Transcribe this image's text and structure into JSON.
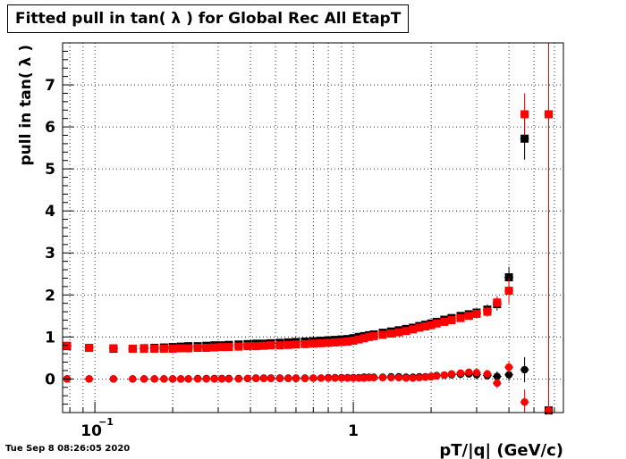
{
  "page": {
    "datestamp": "Tue Sep  8 08:26:05 2020"
  },
  "chart_data": {
    "type": "scatter",
    "title": "Fitted pull in tan( λ ) for Global Rec All EtapT",
    "xlabel": "pT/|q| (GeV/c)",
    "ylabel": "pull in tan( λ )",
    "xscale": "log",
    "xlim": [
      0.075,
      6.5
    ],
    "ylim": [
      -0.8,
      8.0
    ],
    "grid": true,
    "x_ticklabels": [
      {
        "value": 0.1,
        "label": "10",
        "exponent": "−1"
      },
      {
        "value": 1,
        "label": "1",
        "exponent": ""
      }
    ],
    "y_ticklabels": [
      "0",
      "1",
      "2",
      "3",
      "4",
      "5",
      "6",
      "7"
    ],
    "colors": {
      "black": "#000000",
      "red": "#ff0000"
    },
    "series": [
      {
        "color": "#000000",
        "marker": "square",
        "x": [
          0.078,
          0.095,
          0.118,
          0.14,
          0.155,
          0.17,
          0.185,
          0.2,
          0.215,
          0.23,
          0.25,
          0.27,
          0.29,
          0.31,
          0.33,
          0.36,
          0.39,
          0.42,
          0.45,
          0.48,
          0.52,
          0.56,
          0.6,
          0.65,
          0.7,
          0.75,
          0.8,
          0.85,
          0.9,
          0.95,
          1.0,
          1.05,
          1.1,
          1.15,
          1.2,
          1.3,
          1.4,
          1.5,
          1.6,
          1.7,
          1.8,
          1.9,
          2.0,
          2.1,
          2.25,
          2.4,
          2.6,
          2.8,
          3.0,
          3.3,
          3.6,
          4.0,
          4.6,
          5.7
        ],
        "y": [
          0.78,
          0.74,
          0.72,
          0.72,
          0.73,
          0.74,
          0.75,
          0.76,
          0.77,
          0.78,
          0.78,
          0.79,
          0.8,
          0.8,
          0.81,
          0.82,
          0.83,
          0.84,
          0.84,
          0.85,
          0.86,
          0.87,
          0.88,
          0.89,
          0.9,
          0.91,
          0.92,
          0.93,
          0.94,
          0.95,
          0.97,
          1.0,
          1.02,
          1.04,
          1.06,
          1.1,
          1.13,
          1.16,
          1.19,
          1.22,
          1.26,
          1.29,
          1.32,
          1.36,
          1.41,
          1.45,
          1.5,
          1.54,
          1.58,
          1.65,
          1.78,
          2.42,
          5.72,
          -0.75
        ],
        "yerr": [
          0.05,
          0.03,
          0.03,
          0.03,
          0.02,
          0.02,
          0.02,
          0.02,
          0.02,
          0.02,
          0.02,
          0.02,
          0.02,
          0.02,
          0.02,
          0.02,
          0.02,
          0.02,
          0.02,
          0.02,
          0.02,
          0.02,
          0.02,
          0.02,
          0.02,
          0.02,
          0.02,
          0.02,
          0.02,
          0.02,
          0.03,
          0.03,
          0.03,
          0.03,
          0.03,
          0.03,
          0.04,
          0.04,
          0.04,
          0.05,
          0.05,
          0.05,
          0.05,
          0.06,
          0.06,
          0.07,
          0.08,
          0.09,
          0.1,
          0.12,
          0.15,
          0.25,
          0.5,
          0.8
        ]
      },
      {
        "color": "#ff0000",
        "marker": "square",
        "x": [
          0.078,
          0.095,
          0.118,
          0.14,
          0.155,
          0.17,
          0.185,
          0.2,
          0.215,
          0.23,
          0.25,
          0.27,
          0.29,
          0.31,
          0.33,
          0.36,
          0.39,
          0.42,
          0.45,
          0.48,
          0.52,
          0.56,
          0.6,
          0.65,
          0.7,
          0.75,
          0.8,
          0.85,
          0.9,
          0.95,
          1.0,
          1.05,
          1.1,
          1.15,
          1.2,
          1.3,
          1.4,
          1.5,
          1.6,
          1.7,
          1.8,
          1.9,
          2.0,
          2.1,
          2.25,
          2.4,
          2.6,
          2.8,
          3.0,
          3.3,
          3.6,
          4.0,
          4.6,
          5.7
        ],
        "y": [
          0.79,
          0.74,
          0.73,
          0.72,
          0.72,
          0.72,
          0.72,
          0.72,
          0.73,
          0.73,
          0.74,
          0.74,
          0.75,
          0.76,
          0.76,
          0.77,
          0.78,
          0.78,
          0.79,
          0.8,
          0.8,
          0.81,
          0.82,
          0.83,
          0.84,
          0.85,
          0.86,
          0.87,
          0.88,
          0.89,
          0.91,
          0.94,
          0.97,
          1.0,
          1.02,
          1.05,
          1.08,
          1.11,
          1.14,
          1.18,
          1.22,
          1.25,
          1.28,
          1.32,
          1.36,
          1.4,
          1.45,
          1.5,
          1.55,
          1.6,
          1.82,
          2.1,
          6.3,
          6.3
        ],
        "yerr": [
          0.05,
          0.03,
          0.03,
          0.03,
          0.02,
          0.02,
          0.02,
          0.02,
          0.02,
          0.02,
          0.02,
          0.02,
          0.02,
          0.02,
          0.02,
          0.02,
          0.02,
          0.02,
          0.02,
          0.02,
          0.02,
          0.02,
          0.02,
          0.02,
          0.02,
          0.02,
          0.02,
          0.02,
          0.02,
          0.02,
          0.03,
          0.03,
          0.03,
          0.03,
          0.03,
          0.03,
          0.04,
          0.04,
          0.04,
          0.05,
          0.05,
          0.05,
          0.05,
          0.06,
          0.06,
          0.07,
          0.08,
          0.09,
          0.1,
          0.12,
          0.15,
          0.3,
          0.5,
          7.0
        ]
      },
      {
        "color": "#000000",
        "marker": "circle",
        "x": [
          0.078,
          0.095,
          0.118,
          0.14,
          0.155,
          0.17,
          0.185,
          0.2,
          0.215,
          0.23,
          0.25,
          0.27,
          0.29,
          0.31,
          0.33,
          0.36,
          0.39,
          0.42,
          0.45,
          0.48,
          0.52,
          0.56,
          0.6,
          0.65,
          0.7,
          0.75,
          0.8,
          0.85,
          0.9,
          0.95,
          1.0,
          1.05,
          1.1,
          1.15,
          1.2,
          1.3,
          1.4,
          1.5,
          1.6,
          1.7,
          1.8,
          1.9,
          2.0,
          2.1,
          2.25,
          2.4,
          2.6,
          2.8,
          3.0,
          3.3,
          3.6,
          4.0,
          4.6,
          5.7
        ],
        "y": [
          0.0,
          0.0,
          0.0,
          0.0,
          0.0,
          0.0,
          0.0,
          0.0,
          0.0,
          0.0,
          0.01,
          0.01,
          0.01,
          0.01,
          0.01,
          0.01,
          0.01,
          0.02,
          0.02,
          0.02,
          0.02,
          0.02,
          0.02,
          0.02,
          0.02,
          0.02,
          0.03,
          0.03,
          0.03,
          0.03,
          0.03,
          0.03,
          0.04,
          0.04,
          0.04,
          0.04,
          0.05,
          0.05,
          0.04,
          0.04,
          0.05,
          0.05,
          0.06,
          0.08,
          0.09,
          0.1,
          0.11,
          0.12,
          0.1,
          0.08,
          0.06,
          0.1,
          0.22,
          -0.75
        ],
        "yerr": [
          0.03,
          0.02,
          0.02,
          0.02,
          0.02,
          0.02,
          0.02,
          0.02,
          0.02,
          0.02,
          0.02,
          0.02,
          0.02,
          0.02,
          0.02,
          0.02,
          0.02,
          0.02,
          0.02,
          0.02,
          0.02,
          0.02,
          0.02,
          0.02,
          0.02,
          0.02,
          0.02,
          0.02,
          0.02,
          0.02,
          0.03,
          0.03,
          0.03,
          0.03,
          0.03,
          0.03,
          0.03,
          0.03,
          0.04,
          0.04,
          0.04,
          0.04,
          0.05,
          0.05,
          0.05,
          0.06,
          0.07,
          0.08,
          0.09,
          0.1,
          0.12,
          0.15,
          0.3,
          0.6
        ]
      },
      {
        "color": "#ff0000",
        "marker": "circle",
        "x": [
          0.078,
          0.095,
          0.118,
          0.14,
          0.155,
          0.17,
          0.185,
          0.2,
          0.215,
          0.23,
          0.25,
          0.27,
          0.29,
          0.31,
          0.33,
          0.36,
          0.39,
          0.42,
          0.45,
          0.48,
          0.52,
          0.56,
          0.6,
          0.65,
          0.7,
          0.75,
          0.8,
          0.85,
          0.9,
          0.95,
          1.0,
          1.05,
          1.1,
          1.15,
          1.2,
          1.3,
          1.4,
          1.5,
          1.6,
          1.7,
          1.8,
          1.9,
          2.0,
          2.1,
          2.25,
          2.4,
          2.6,
          2.8,
          3.0,
          3.3,
          3.6,
          4.0,
          4.6,
          5.7
        ],
        "y": [
          0.0,
          0.0,
          0.0,
          0.0,
          0.0,
          0.0,
          0.0,
          0.0,
          0.0,
          0.0,
          0.0,
          0.0,
          0.0,
          0.0,
          0.0,
          0.0,
          0.01,
          0.01,
          0.01,
          0.01,
          0.01,
          0.01,
          0.01,
          0.01,
          0.02,
          0.02,
          0.02,
          0.02,
          0.02,
          0.02,
          0.02,
          0.02,
          0.02,
          0.03,
          0.03,
          0.03,
          0.03,
          0.03,
          0.02,
          0.02,
          0.03,
          0.04,
          0.05,
          0.07,
          0.09,
          0.12,
          0.14,
          0.16,
          0.15,
          0.12,
          -0.1,
          0.28,
          -0.55,
          -0.75
        ],
        "yerr": [
          0.03,
          0.02,
          0.02,
          0.02,
          0.02,
          0.02,
          0.02,
          0.02,
          0.02,
          0.02,
          0.02,
          0.02,
          0.02,
          0.02,
          0.02,
          0.02,
          0.02,
          0.02,
          0.02,
          0.02,
          0.02,
          0.02,
          0.02,
          0.02,
          0.02,
          0.02,
          0.02,
          0.02,
          0.02,
          0.02,
          0.03,
          0.03,
          0.03,
          0.03,
          0.03,
          0.03,
          0.03,
          0.03,
          0.04,
          0.04,
          0.04,
          0.04,
          0.05,
          0.05,
          0.05,
          0.06,
          0.07,
          0.08,
          0.09,
          0.1,
          0.12,
          0.15,
          0.3,
          7.0
        ]
      }
    ]
  }
}
